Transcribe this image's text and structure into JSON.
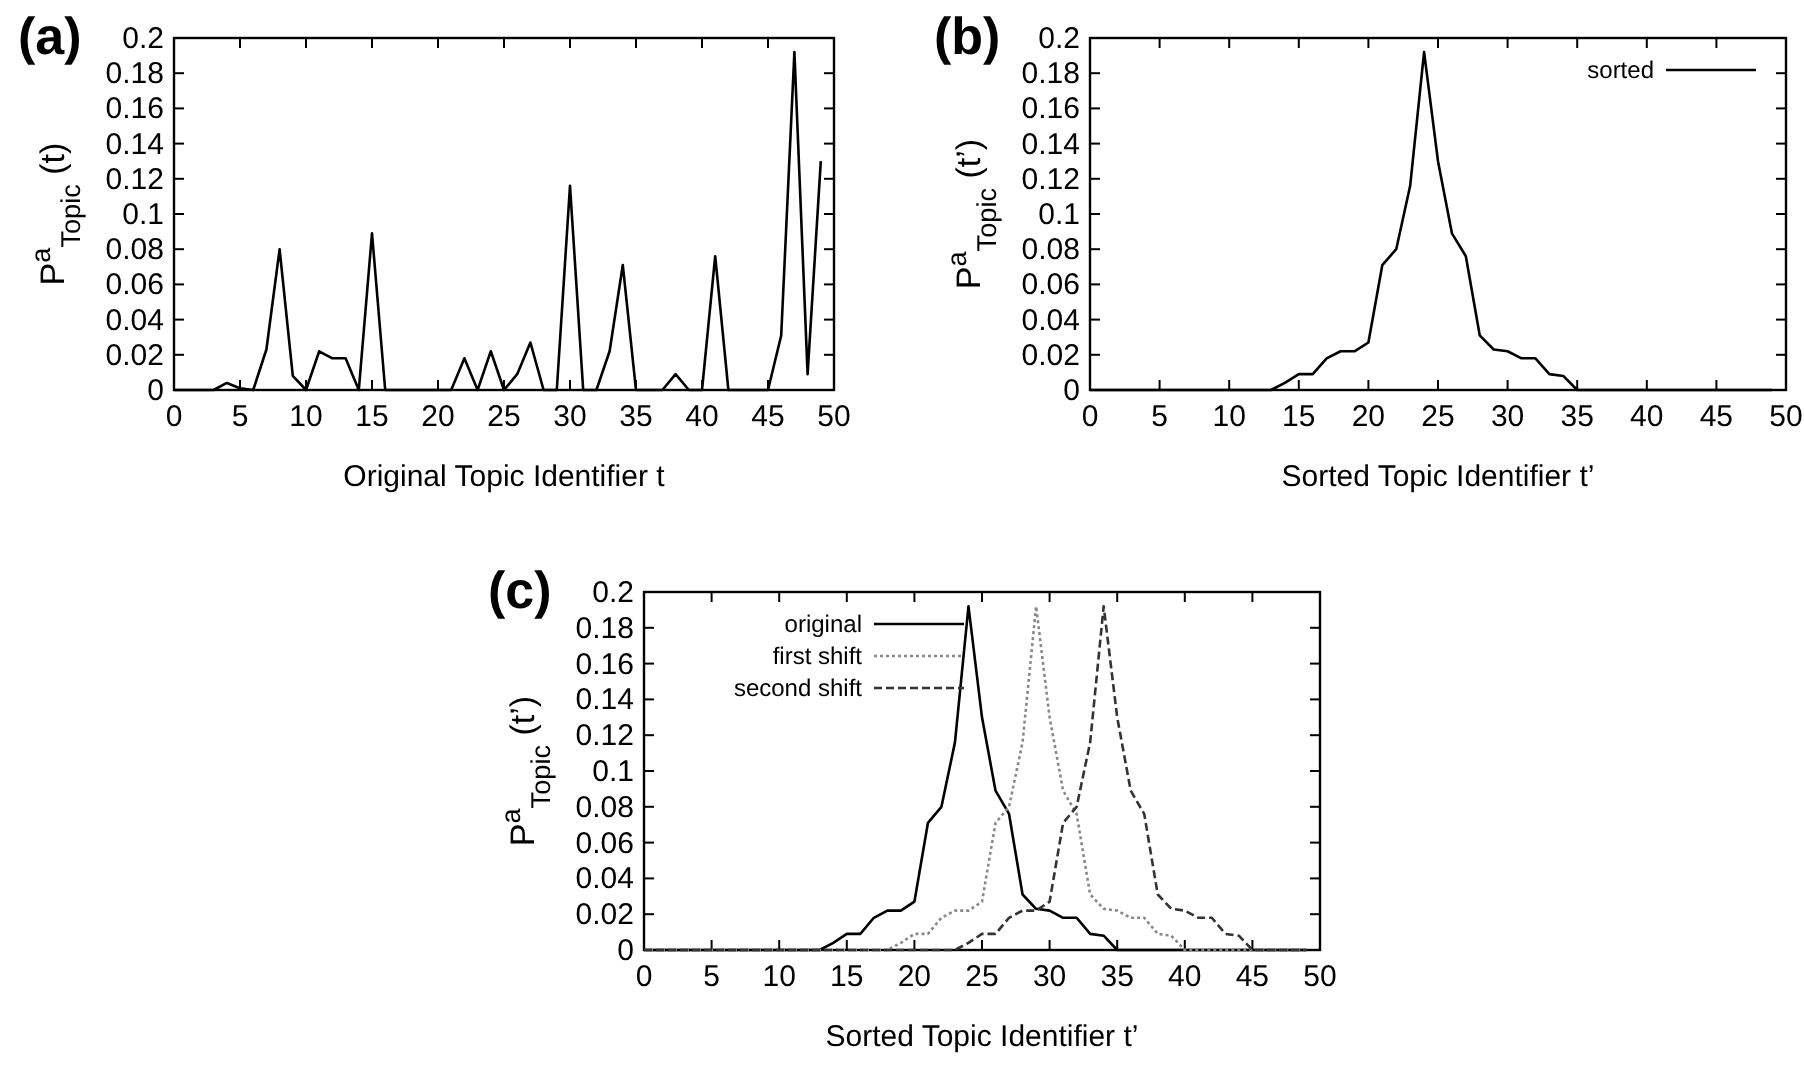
{
  "chart_data": [
    {
      "type": "line",
      "title": "(a)",
      "xlabel": "Original Topic Identifier t",
      "ylabel": "P$^{a}$$_{Topic}$ (t)",
      "x": [
        0,
        1,
        2,
        3,
        4,
        5,
        6,
        7,
        8,
        9,
        10,
        11,
        12,
        13,
        14,
        15,
        16,
        17,
        18,
        19,
        20,
        21,
        22,
        23,
        24,
        25,
        26,
        27,
        28,
        29,
        30,
        31,
        32,
        33,
        34,
        35,
        36,
        37,
        38,
        39,
        40,
        41,
        42,
        43,
        44,
        45,
        46,
        47,
        48,
        49
      ],
      "xlim": [
        0,
        50
      ],
      "ylim": [
        0,
        0.2
      ],
      "xticks": [
        0,
        5,
        10,
        15,
        20,
        25,
        30,
        35,
        40,
        45,
        50
      ],
      "yticks": [
        0,
        0.02,
        0.04,
        0.06,
        0.08,
        0.1,
        0.12,
        0.14,
        0.16,
        0.18,
        0.2
      ],
      "series": [
        {
          "color": "#000000",
          "line_style": "solid",
          "values": [
            0,
            0,
            0,
            0,
            0.004,
            0.001,
            0,
            0.023,
            0.08,
            0.008,
            0,
            0.022,
            0.018,
            0.018,
            0,
            0.089,
            0,
            0,
            0,
            0,
            0,
            0,
            0.018,
            0,
            0.022,
            0,
            0.009,
            0.027,
            0,
            0,
            0.116,
            0,
            0,
            0.022,
            0.071,
            0,
            0,
            0,
            0.009,
            0,
            0,
            0.076,
            0,
            0,
            0,
            0,
            0.031,
            0.192,
            0.009,
            0.13
          ]
        }
      ]
    },
    {
      "type": "line",
      "title": "(b)",
      "xlabel": "Sorted Topic Identifier t’",
      "ylabel": "P$^{a}$$_{Topic}$ (t’)",
      "legend": "top right",
      "x": [
        0,
        1,
        2,
        3,
        4,
        5,
        6,
        7,
        8,
        9,
        10,
        11,
        12,
        13,
        14,
        15,
        16,
        17,
        18,
        19,
        20,
        21,
        22,
        23,
        24,
        25,
        26,
        27,
        28,
        29,
        30,
        31,
        32,
        33,
        34,
        35,
        36,
        37,
        38,
        39,
        40,
        41,
        42,
        43,
        44,
        45,
        46,
        47,
        48,
        49
      ],
      "xlim": [
        0,
        50
      ],
      "ylim": [
        0,
        0.2
      ],
      "xticks": [
        0,
        5,
        10,
        15,
        20,
        25,
        30,
        35,
        40,
        45,
        50
      ],
      "yticks": [
        0,
        0.02,
        0.04,
        0.06,
        0.08,
        0.1,
        0.12,
        0.14,
        0.16,
        0.18,
        0.2
      ],
      "series": [
        {
          "name": "sorted",
          "color": "#000000",
          "line_style": "solid",
          "values": [
            0,
            0,
            0,
            0,
            0,
            0,
            0,
            0,
            0,
            0,
            0,
            0,
            0,
            0,
            0.004,
            0.009,
            0.009,
            0.018,
            0.022,
            0.022,
            0.027,
            0.071,
            0.08,
            0.116,
            0.192,
            0.13,
            0.089,
            0.076,
            0.031,
            0.023,
            0.022,
            0.018,
            0.018,
            0.009,
            0.008,
            0,
            0,
            0,
            0,
            0,
            0,
            0,
            0,
            0,
            0,
            0,
            0,
            0,
            0,
            0
          ]
        }
      ]
    },
    {
      "type": "line",
      "title": "(c)",
      "xlabel": "Sorted Topic Identifier t’",
      "ylabel": "P$^{a}$$_{Topic}$ (t’)",
      "legend": "top left",
      "x": [
        0,
        1,
        2,
        3,
        4,
        5,
        6,
        7,
        8,
        9,
        10,
        11,
        12,
        13,
        14,
        15,
        16,
        17,
        18,
        19,
        20,
        21,
        22,
        23,
        24,
        25,
        26,
        27,
        28,
        29,
        30,
        31,
        32,
        33,
        34,
        35,
        36,
        37,
        38,
        39,
        40,
        41,
        42,
        43,
        44,
        45,
        46,
        47,
        48,
        49
      ],
      "xlim": [
        0,
        50
      ],
      "ylim": [
        0,
        0.2
      ],
      "xticks": [
        0,
        5,
        10,
        15,
        20,
        25,
        30,
        35,
        40,
        45,
        50
      ],
      "yticks": [
        0,
        0.02,
        0.04,
        0.06,
        0.08,
        0.1,
        0.12,
        0.14,
        0.16,
        0.18,
        0.2
      ],
      "series": [
        {
          "name": "original",
          "color": "#000000",
          "line_style": "solid",
          "values": [
            0,
            0,
            0,
            0,
            0,
            0,
            0,
            0,
            0,
            0,
            0,
            0,
            0,
            0,
            0.004,
            0.009,
            0.009,
            0.018,
            0.022,
            0.022,
            0.027,
            0.071,
            0.08,
            0.116,
            0.192,
            0.13,
            0.089,
            0.076,
            0.031,
            0.023,
            0.022,
            0.018,
            0.018,
            0.009,
            0.008,
            0,
            0,
            0,
            0,
            0,
            0,
            0,
            0,
            0,
            0,
            0,
            0,
            0,
            0,
            0
          ]
        },
        {
          "name": "first shift",
          "color": "#888888",
          "line_style": "dotted",
          "values": [
            0,
            0,
            0,
            0,
            0,
            0,
            0,
            0,
            0,
            0,
            0,
            0,
            0,
            0,
            0,
            0,
            0,
            0,
            0,
            0.004,
            0.009,
            0.009,
            0.018,
            0.022,
            0.022,
            0.027,
            0.071,
            0.08,
            0.116,
            0.192,
            0.13,
            0.089,
            0.076,
            0.031,
            0.023,
            0.022,
            0.018,
            0.018,
            0.009,
            0.008,
            0,
            0,
            0,
            0,
            0,
            0,
            0,
            0,
            0,
            0
          ]
        },
        {
          "name": "second shift",
          "color": "#333333",
          "line_style": "dashed",
          "values": [
            0,
            0,
            0,
            0,
            0,
            0,
            0,
            0,
            0,
            0,
            0,
            0,
            0,
            0,
            0,
            0,
            0,
            0,
            0,
            0,
            0,
            0,
            0,
            0,
            0.004,
            0.009,
            0.009,
            0.018,
            0.022,
            0.022,
            0.027,
            0.071,
            0.08,
            0.116,
            0.192,
            0.13,
            0.089,
            0.076,
            0.031,
            0.023,
            0.022,
            0.018,
            0.018,
            0.009,
            0.008,
            0,
            0,
            0,
            0,
            0
          ]
        }
      ]
    }
  ]
}
